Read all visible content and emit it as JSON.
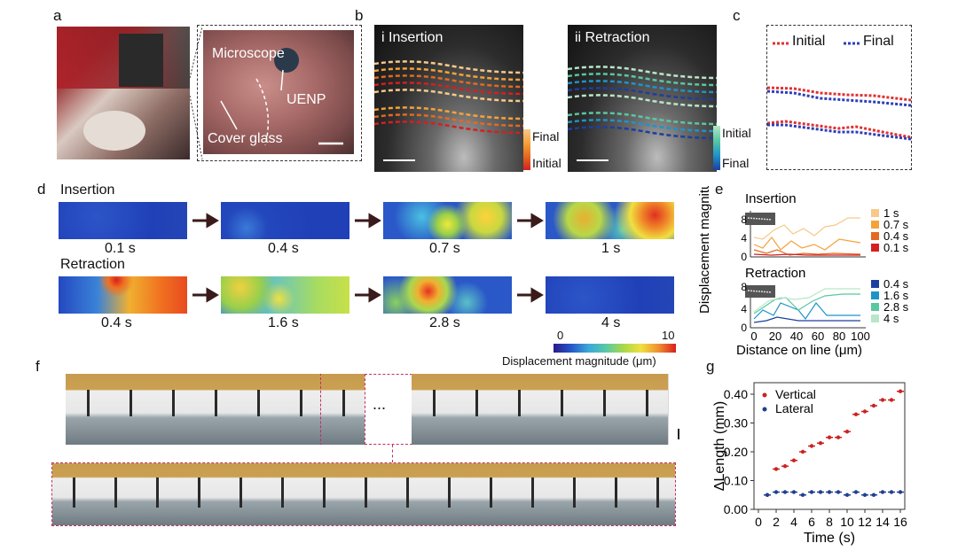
{
  "panel_labels": {
    "a": "a",
    "b": "b",
    "c": "c",
    "d": "d",
    "e": "e",
    "f": "f",
    "g": "g"
  },
  "panel_a": {
    "microscope": "Microscope",
    "probe": "UENP",
    "cover_glass": "Cover glass"
  },
  "panel_b": {
    "left_title": "i Insertion",
    "right_title": "ii Retraction",
    "left_legend": {
      "top": "Final",
      "bottom": "Initial"
    },
    "right_legend": {
      "top": "Initial",
      "bottom": "Final"
    },
    "colors": {
      "ins": [
        "#f6c98a",
        "#f4a23a",
        "#e36a1f",
        "#d42020"
      ],
      "ret": [
        "#b8e6c8",
        "#58c8a0",
        "#1f93c9",
        "#1d3f9f"
      ]
    }
  },
  "panel_c": {
    "legend_initial": "Initial",
    "legend_final": "Final",
    "initial_color": "#e03030",
    "final_color": "#2c3fb8"
  },
  "panel_d": {
    "insertion_title": "Insertion",
    "retraction_title": "Retraction",
    "insertion_times": [
      "0.1 s",
      "0.4 s",
      "0.7 s",
      "1 s"
    ],
    "retraction_times": [
      "0.4 s",
      "1.6 s",
      "2.8 s",
      "4 s"
    ],
    "colorbar": {
      "min": "0",
      "max": "10",
      "label": "Displacement magnitude (μm)"
    }
  },
  "panel_e": {
    "ylabel": "Displacement magnitude (μm)",
    "xlabel": "Distance on line (μm)",
    "x_ticks": [
      "0",
      "20",
      "40",
      "60",
      "80",
      "100"
    ],
    "insertion": {
      "title": "Insertion",
      "y_ticks": [
        "0",
        "4",
        "8"
      ],
      "legend": [
        "1 s",
        "0.7 s",
        "0.4 s",
        "0.1 s"
      ],
      "colors": [
        "#f6c98a",
        "#f4a23a",
        "#e36a1f",
        "#d42020"
      ]
    },
    "retraction": {
      "title": "Retraction",
      "y_ticks": [
        "0",
        "4",
        "8"
      ],
      "legend": [
        "0.4 s",
        "1.6 s",
        "2.8 s",
        "4 s"
      ],
      "colors": [
        "#1d3f9f",
        "#1f93c9",
        "#58c8a0",
        "#b8e6c8"
      ]
    }
  },
  "panel_f": {
    "ellipsis": "..."
  },
  "chart_data": {
    "type": "scatter",
    "title": "",
    "xlabel": "Time (s)",
    "ylabel": "ΔLength (mm)",
    "xlim": [
      -0.5,
      16.5
    ],
    "ylim": [
      0,
      0.44
    ],
    "x_ticks": [
      "0",
      "2",
      "4",
      "6",
      "8",
      "10",
      "12",
      "14",
      "16"
    ],
    "y_ticks": [
      "0.00",
      "0.10",
      "0.20",
      "0.30",
      "0.40"
    ],
    "series": [
      {
        "name": "Vertical",
        "color": "#cc2222",
        "x": [
          1,
          2,
          3,
          4,
          5,
          6,
          7,
          8,
          9,
          10,
          11,
          12,
          13,
          14,
          15,
          16
        ],
        "values": [
          0.05,
          0.14,
          0.15,
          0.17,
          0.2,
          0.22,
          0.23,
          0.25,
          0.25,
          0.27,
          0.33,
          0.34,
          0.36,
          0.38,
          0.38,
          0.41
        ]
      },
      {
        "name": "Lateral",
        "color": "#1f3f8f",
        "x": [
          1,
          2,
          3,
          4,
          5,
          6,
          7,
          8,
          9,
          10,
          11,
          12,
          13,
          14,
          15,
          16
        ],
        "values": [
          0.05,
          0.06,
          0.06,
          0.06,
          0.05,
          0.06,
          0.06,
          0.06,
          0.06,
          0.05,
          0.06,
          0.05,
          0.05,
          0.06,
          0.06,
          0.06
        ]
      }
    ]
  }
}
